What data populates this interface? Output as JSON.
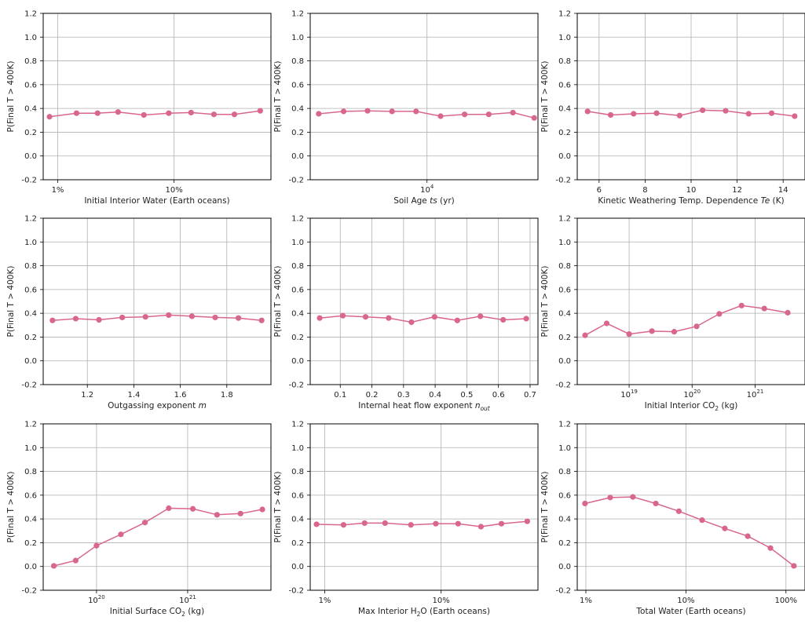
{
  "colors": {
    "series": "#d9668f",
    "grid": "#b0b0b0"
  },
  "chart_data": [
    {
      "type": "line",
      "xscale": "log",
      "xlim": [
        0.0075,
        0.68
      ],
      "ylim": [
        -0.2,
        1.2
      ],
      "ylabel": "P(Final T > 400K)",
      "xlabel": [
        {
          "t": "Initial Interior Water (Earth oceans)"
        }
      ],
      "xticks": [
        {
          "v": 0.01,
          "label": "1%"
        },
        {
          "v": 0.1,
          "label": "10%"
        }
      ],
      "x": [
        0.0085,
        0.0145,
        0.022,
        0.033,
        0.055,
        0.09,
        0.14,
        0.22,
        0.33,
        0.55
      ],
      "y": [
        0.33,
        0.36,
        0.36,
        0.37,
        0.345,
        0.36,
        0.365,
        0.35,
        0.35,
        0.38
      ]
    },
    {
      "type": "line",
      "xscale": "log",
      "xlim": [
        1200,
        75000
      ],
      "ylim": [
        -0.2,
        1.2
      ],
      "ylabel": "P(Final T > 400K)",
      "xlabel": [
        {
          "t": "Soil Age "
        },
        {
          "t": "ts",
          "i": true
        },
        {
          "t": " (yr)"
        }
      ],
      "xticks": [
        {
          "v": 10000,
          "base": "10",
          "exp": "4"
        }
      ],
      "x": [
        1400,
        2200,
        3400,
        5300,
        8200,
        12800,
        19800,
        30700,
        47600,
        70000
      ],
      "y": [
        0.355,
        0.375,
        0.38,
        0.375,
        0.375,
        0.335,
        0.35,
        0.35,
        0.365,
        0.32
      ]
    },
    {
      "type": "line",
      "xscale": "linear",
      "xlim": [
        5.05,
        14.95
      ],
      "ylim": [
        -0.2,
        1.2
      ],
      "ylabel": "P(Final T > 400K)",
      "xlabel": [
        {
          "t": "Kinetic Weathering Temp. Dependence "
        },
        {
          "t": "Te",
          "i": true
        },
        {
          "t": " (K)"
        }
      ],
      "xticks": [
        {
          "v": 6,
          "label": "6"
        },
        {
          "v": 8,
          "label": "8"
        },
        {
          "v": 10,
          "label": "10"
        },
        {
          "v": 12,
          "label": "12"
        },
        {
          "v": 14,
          "label": "14"
        }
      ],
      "x": [
        5.5,
        6.5,
        7.5,
        8.5,
        9.5,
        10.5,
        11.5,
        12.5,
        13.5,
        14.5
      ],
      "y": [
        0.375,
        0.345,
        0.355,
        0.36,
        0.34,
        0.385,
        0.38,
        0.355,
        0.36,
        0.335
      ]
    },
    {
      "type": "line",
      "xscale": "linear",
      "xlim": [
        1.01,
        1.99
      ],
      "ylim": [
        -0.2,
        1.2
      ],
      "ylabel": "P(Final T > 400K)",
      "xlabel": [
        {
          "t": "Outgassing exponent "
        },
        {
          "t": "m",
          "i": true
        }
      ],
      "xticks": [
        {
          "v": 1.2,
          "label": "1.2"
        },
        {
          "v": 1.4,
          "label": "1.4"
        },
        {
          "v": 1.6,
          "label": "1.6"
        },
        {
          "v": 1.8,
          "label": "1.8"
        }
      ],
      "x": [
        1.05,
        1.15,
        1.25,
        1.35,
        1.45,
        1.55,
        1.65,
        1.75,
        1.85,
        1.95
      ],
      "y": [
        0.34,
        0.355,
        0.345,
        0.365,
        0.37,
        0.385,
        0.375,
        0.365,
        0.36,
        0.34
      ]
    },
    {
      "type": "line",
      "xscale": "linear",
      "xlim": [
        0.005,
        0.725
      ],
      "ylim": [
        -0.2,
        1.2
      ],
      "ylabel": "P(Final T > 400K)",
      "xlabel": [
        {
          "t": "Internal heat flow exponent "
        },
        {
          "t": "n",
          "i": true
        },
        {
          "t": "out",
          "i": true,
          "sub": true
        }
      ],
      "xticks": [
        {
          "v": 0.1,
          "label": "0.1"
        },
        {
          "v": 0.2,
          "label": "0.2"
        },
        {
          "v": 0.3,
          "label": "0.3"
        },
        {
          "v": 0.4,
          "label": "0.4"
        },
        {
          "v": 0.5,
          "label": "0.5"
        },
        {
          "v": 0.6,
          "label": "0.6"
        },
        {
          "v": 0.7,
          "label": "0.7"
        }
      ],
      "x": [
        0.035,
        0.108,
        0.18,
        0.253,
        0.325,
        0.398,
        0.47,
        0.543,
        0.615,
        0.688
      ],
      "y": [
        0.36,
        0.38,
        0.37,
        0.36,
        0.325,
        0.37,
        0.34,
        0.375,
        0.345,
        0.355
      ]
    },
    {
      "type": "line",
      "xscale": "log",
      "xlim": [
        1.5e+18,
        6.2e+21
      ],
      "ylim": [
        -0.2,
        1.2
      ],
      "ylabel": "P(Final T > 400K)",
      "xlabel": [
        {
          "t": "Initial Interior CO"
        },
        {
          "t": "2",
          "sub": true
        },
        {
          "t": " (kg)"
        }
      ],
      "xticks": [
        {
          "v": 1e+19,
          "base": "10",
          "exp": "19"
        },
        {
          "v": 1e+20,
          "base": "10",
          "exp": "20"
        },
        {
          "v": 1e+21,
          "base": "10",
          "exp": "21"
        }
      ],
      "x": [
        2e+18,
        4.4e+18,
        1e+19,
        2.3e+19,
        5.2e+19,
        1.18e+20,
        2.7e+20,
        6.1e+20,
        1.4e+21,
        3.3e+21
      ],
      "y": [
        0.215,
        0.315,
        0.225,
        0.25,
        0.245,
        0.29,
        0.395,
        0.465,
        0.44,
        0.405
      ]
    },
    {
      "type": "line",
      "xscale": "log",
      "xlim": [
        2.6e+19,
        8.2e+21
      ],
      "ylim": [
        -0.2,
        1.2
      ],
      "ylabel": "P(Final T > 400K)",
      "xlabel": [
        {
          "t": "Initial Surface CO"
        },
        {
          "t": "2",
          "sub": true
        },
        {
          "t": " (kg)"
        }
      ],
      "xticks": [
        {
          "v": 1e+20,
          "base": "10",
          "exp": "20"
        },
        {
          "v": 1e+21,
          "base": "10",
          "exp": "21"
        }
      ],
      "x": [
        3.4e+19,
        5.9e+19,
        1e+20,
        1.85e+20,
        3.4e+20,
        6.2e+20,
        1.14e+21,
        2.1e+21,
        3.8e+21,
        6.6e+21
      ],
      "y": [
        0.005,
        0.05,
        0.175,
        0.27,
        0.37,
        0.49,
        0.485,
        0.435,
        0.445,
        0.48
      ]
    },
    {
      "type": "line",
      "xscale": "log",
      "xlim": [
        0.0075,
        0.68
      ],
      "ylim": [
        -0.2,
        1.2
      ],
      "ylabel": "P(Final T > 400K)",
      "xlabel": [
        {
          "t": "Max Interior H"
        },
        {
          "t": "2",
          "sub": true
        },
        {
          "t": "O (Earth oceans)"
        }
      ],
      "xticks": [
        {
          "v": 0.01,
          "label": "1%"
        },
        {
          "v": 0.1,
          "label": "10%"
        }
      ],
      "x": [
        0.0085,
        0.0145,
        0.022,
        0.033,
        0.055,
        0.09,
        0.14,
        0.22,
        0.33,
        0.55
      ],
      "y": [
        0.355,
        0.35,
        0.365,
        0.365,
        0.35,
        0.36,
        0.36,
        0.335,
        0.36,
        0.38
      ]
    },
    {
      "type": "line",
      "xscale": "log",
      "xlim": [
        0.0082,
        1.55
      ],
      "ylim": [
        -0.2,
        1.2
      ],
      "ylabel": "P(Final T > 400K)",
      "xlabel": [
        {
          "t": "Total Water (Earth oceans)"
        }
      ],
      "xticks": [
        {
          "v": 0.01,
          "label": "1%"
        },
        {
          "v": 0.1,
          "label": "10%"
        },
        {
          "v": 1,
          "label": "100%"
        }
      ],
      "x": [
        0.0098,
        0.0175,
        0.0295,
        0.05,
        0.085,
        0.145,
        0.245,
        0.415,
        0.7,
        1.2
      ],
      "y": [
        0.53,
        0.58,
        0.585,
        0.53,
        0.465,
        0.39,
        0.32,
        0.255,
        0.155,
        0.005
      ]
    }
  ]
}
